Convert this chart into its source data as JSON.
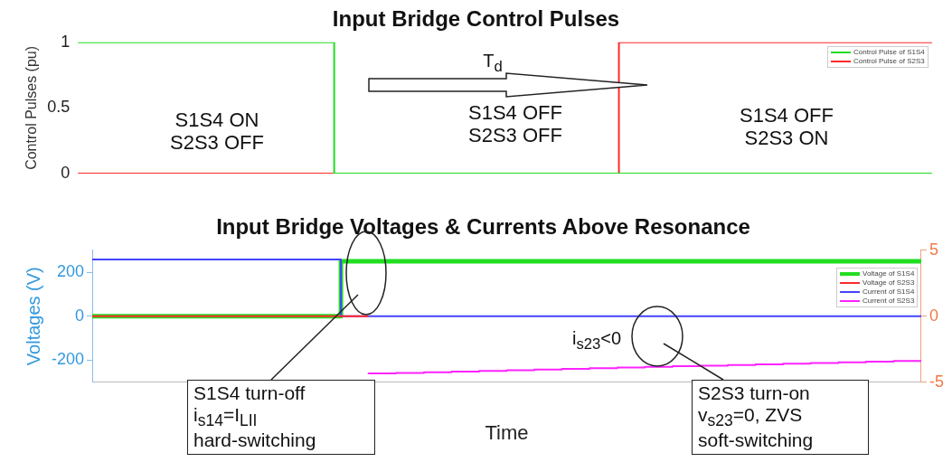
{
  "chart_data": [
    {
      "type": "step",
      "title": "Input Bridge Control Pulses",
      "ylabel": "Control Pulses (pu)",
      "categories": [
        null,
        null,
        null,
        null,
        null,
        null,
        null,
        null,
        null,
        null,
        null,
        null,
        null,
        null,
        null,
        null,
        null,
        null,
        null,
        null,
        null,
        null,
        null,
        null,
        null,
        null,
        null,
        null,
        null,
        null,
        null
      ],
      "ylim": [
        0,
        1
      ],
      "yticks": [
        0,
        0.5,
        1
      ],
      "tick_labels": "y",
      "legend": "top right",
      "series": [
        {
          "name": "Control Pulse of S1S4",
          "color": "#22dd22",
          "values": [
            1,
            1,
            1,
            1,
            1,
            1,
            1,
            1,
            1,
            1,
            0,
            0,
            0,
            0,
            0,
            0,
            0,
            0,
            0,
            0,
            0,
            0,
            0,
            0,
            0,
            0,
            0,
            0,
            0,
            0,
            0
          ]
        },
        {
          "name": "Control Pulse of S2S3",
          "color": "#ff2a2a",
          "values": [
            0,
            0,
            0,
            0,
            0,
            0,
            0,
            0,
            0,
            0,
            0,
            0,
            0,
            0,
            0,
            0,
            0,
            0,
            0,
            0,
            1,
            1,
            1,
            1,
            1,
            1,
            1,
            1,
            1,
            1,
            1
          ]
        }
      ],
      "annotations": [
        "S1S4 ON\nS2S3 OFF",
        "S1S4 OFF\nS2S3 OFF",
        "S1S4 OFF\nS2S3 ON",
        "T$_{d}$"
      ]
    },
    {
      "type": "step",
      "title": "Input Bridge Voltages & Currents Above Resonance",
      "xlabel": "Time",
      "ylabel": "Voltages (V)",
      "categories": [
        null,
        null,
        null,
        null,
        null,
        null,
        null,
        null,
        null,
        null,
        null,
        null,
        null,
        null,
        null,
        null,
        null,
        null,
        null,
        null,
        null,
        null,
        null,
        null,
        null,
        null,
        null,
        null,
        null,
        null,
        null
      ],
      "ylim": [
        -300,
        300
      ],
      "yticks": [
        -200,
        0,
        200
      ],
      "y2lim": [
        -5,
        5
      ],
      "y2ticks": [
        -5,
        0,
        5
      ],
      "tick_labels": "y",
      "legend": "top right",
      "series": [
        {
          "name": "Voltage of S1S4",
          "color": "#22dd22",
          "values": [
            0,
            0,
            0,
            0,
            0,
            0,
            0,
            0,
            0,
            0,
            250,
            250,
            250,
            250,
            250,
            250,
            250,
            250,
            250,
            250,
            250,
            250,
            250,
            250,
            250,
            250,
            250,
            250,
            250,
            250,
            250
          ]
        },
        {
          "name": "Voltage of S2S3",
          "color": "#ff2a2a",
          "values": [
            0,
            0,
            0,
            0,
            0,
            0,
            0,
            0,
            0,
            0,
            0,
            null,
            null,
            null,
            null,
            null,
            null,
            null,
            null,
            null,
            null,
            null,
            null,
            null,
            null,
            null,
            null,
            null,
            null,
            null,
            null
          ]
        },
        {
          "name": "Current of S1S4",
          "color": "#4444ff",
          "axis": "y2",
          "values": [
            4.3,
            4.3,
            4.3,
            4.3,
            4.3,
            4.3,
            4.3,
            4.3,
            4.3,
            4.3,
            0,
            0,
            0,
            0,
            0,
            0,
            0,
            0,
            0,
            0,
            0,
            0,
            0,
            0,
            0,
            0,
            0,
            0,
            0,
            0,
            0
          ]
        },
        {
          "name": "Current of S2S3",
          "color": "#ff22ff",
          "axis": "y2",
          "values": [
            null,
            null,
            null,
            null,
            null,
            null,
            null,
            null,
            null,
            null,
            -4.4,
            -4.35,
            -4.3,
            -4.25,
            -4.2,
            -4.15,
            -4.1,
            -4.05,
            -4,
            -3.95,
            -3.9,
            -3.85,
            -3.8,
            -3.75,
            -3.7,
            -3.65,
            -3.6,
            -3.55,
            -3.5,
            -3.45,
            -3.4
          ]
        }
      ],
      "annotations": [
        "i$_{s23}$<0",
        "S1S4 turn-off\ni$_{s14}$=I$_{LII}$\nhard-switching",
        "S2S3 turn-on\nv$_{s23}$=0, ZVS\nsoft-switching"
      ]
    }
  ]
}
